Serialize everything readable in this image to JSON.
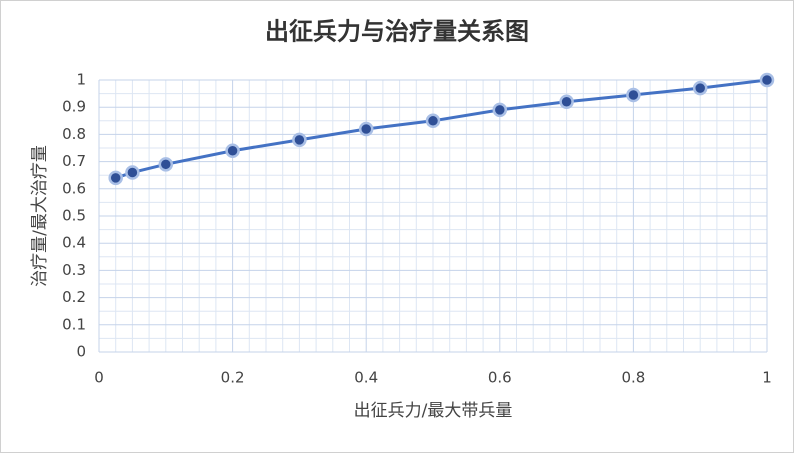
{
  "chart_data": {
    "type": "line",
    "title": "出征兵力与治疗量关系图",
    "x_label": "出征兵力/最大带兵量",
    "y_label": "治疗量/最大治疗量",
    "x": [
      0.025,
      0.05,
      0.1,
      0.2,
      0.3,
      0.4,
      0.5,
      0.6,
      0.7,
      0.8,
      0.9,
      1
    ],
    "series": [
      {
        "name": "治疗量",
        "color": "#4472c4",
        "values": [
          0.64,
          0.66,
          0.69,
          0.74,
          0.78,
          0.82,
          0.85,
          0.89,
          0.92,
          0.945,
          0.97,
          1
        ]
      }
    ],
    "xlim": [
      0,
      1
    ],
    "xticks": [
      0,
      0.2,
      0.4,
      0.6,
      0.8,
      1
    ],
    "ylim": [
      0,
      1
    ],
    "yticks": [
      0,
      0.1,
      0.2,
      0.3,
      0.4,
      0.5,
      0.6,
      0.7,
      0.8,
      0.9,
      1
    ],
    "grid": true,
    "minor_grid": true,
    "markers": true
  }
}
